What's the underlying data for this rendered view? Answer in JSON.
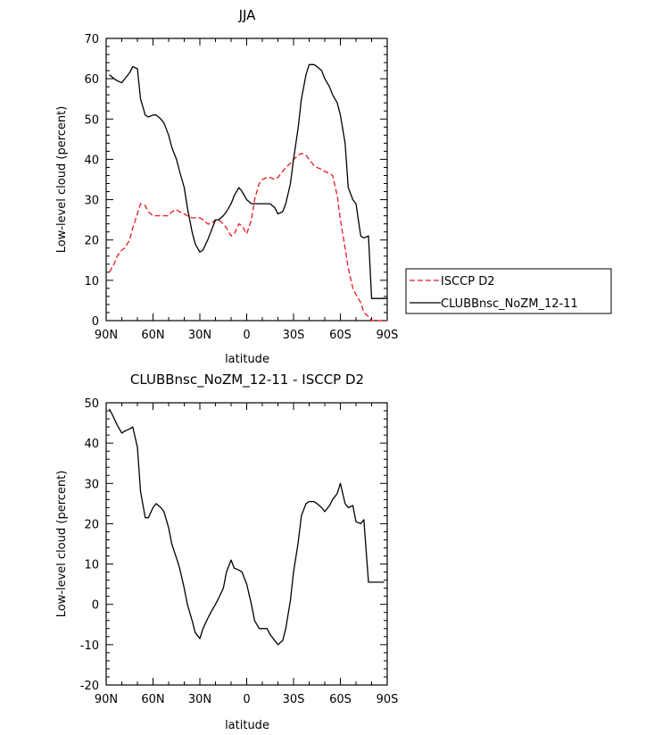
{
  "chart_data": [
    {
      "type": "line",
      "title": "JJA",
      "xlabel": "latitude",
      "ylabel": "Low-level cloud (percent)",
      "xlim": [
        90,
        -90
      ],
      "ylim": [
        0,
        70
      ],
      "x_ticks": [
        90,
        60,
        30,
        0,
        -30,
        -60,
        -90
      ],
      "x_tick_labels": [
        "90N",
        "60N",
        "30N",
        "0",
        "30S",
        "60S",
        "90S"
      ],
      "y_ticks": [
        0,
        10,
        20,
        30,
        40,
        50,
        60,
        70
      ],
      "y_tick_labels": [
        "0",
        "10",
        "20",
        "30",
        "40",
        "50",
        "60",
        "70"
      ],
      "legend_position": "outside-right",
      "series": [
        {
          "name": "ISCCP D2",
          "color": "#e8191f",
          "style": "dashed",
          "x": [
            88,
            85,
            83,
            80,
            78,
            75,
            73,
            70,
            68,
            65,
            63,
            60,
            58,
            55,
            53,
            50,
            48,
            45,
            43,
            40,
            38,
            35,
            33,
            30,
            28,
            25,
            23,
            20,
            18,
            15,
            13,
            10,
            8,
            5,
            3,
            0,
            -3,
            -5,
            -8,
            -10,
            -13,
            -15,
            -18,
            -20,
            -23,
            -25,
            -28,
            -30,
            -33,
            -35,
            -38,
            -40,
            -43,
            -45,
            -48,
            -50,
            -53,
            -55,
            -58,
            -60,
            -63,
            -65,
            -68,
            -70,
            -73,
            -75,
            -78,
            -80,
            -83,
            -85,
            -88,
            -90
          ],
          "values": [
            12,
            14,
            16,
            17.5,
            18,
            20,
            23,
            26.5,
            29,
            28.5,
            27,
            26,
            26,
            26,
            26,
            26,
            27,
            27.5,
            27,
            26.5,
            26,
            25.5,
            25.5,
            25.5,
            25,
            24,
            24,
            25,
            25,
            24,
            23,
            21,
            21.5,
            24,
            23.5,
            21.5,
            25,
            30,
            34,
            35,
            35.5,
            35.5,
            35,
            35.5,
            37,
            38,
            39,
            40,
            41,
            41.5,
            41,
            40,
            38.5,
            38,
            37.5,
            37,
            36.5,
            36,
            31,
            25,
            18,
            13,
            8,
            6.5,
            4.5,
            2,
            1,
            0,
            0,
            0,
            0,
            0
          ]
        },
        {
          "name": "CLUBBnsc_NoZM_12-11",
          "color": "#000000",
          "style": "solid",
          "x": [
            88,
            85,
            83,
            80,
            78,
            75,
            73,
            70,
            68,
            65,
            63,
            60,
            58,
            55,
            53,
            50,
            48,
            45,
            43,
            40,
            38,
            35,
            33,
            30,
            28,
            25,
            23,
            20,
            18,
            15,
            13,
            10,
            8,
            5,
            3,
            0,
            -3,
            -5,
            -8,
            -10,
            -13,
            -15,
            -18,
            -20,
            -23,
            -25,
            -28,
            -30,
            -33,
            -35,
            -38,
            -40,
            -43,
            -45,
            -48,
            -50,
            -53,
            -55,
            -58,
            -60,
            -63,
            -65,
            -68,
            -70,
            -73,
            -75,
            -78,
            -80,
            -83,
            -85,
            -88,
            -90
          ],
          "values": [
            61,
            60,
            59.5,
            59,
            60,
            61.5,
            63,
            62.5,
            55,
            51,
            50.5,
            51,
            51,
            50,
            49,
            46,
            43,
            40,
            37,
            33,
            28,
            22,
            19,
            17,
            17.5,
            20,
            22,
            25,
            25,
            26,
            27,
            29,
            31,
            33,
            32,
            30,
            29,
            29,
            29,
            29,
            29,
            29,
            28,
            26.5,
            27,
            29,
            34,
            40,
            48,
            55,
            61,
            63.5,
            63.5,
            63,
            62,
            60,
            58,
            56,
            54,
            51,
            44,
            33,
            30,
            29,
            21,
            20.5,
            21,
            5.5,
            5.5,
            5.5,
            5.5,
            5.5
          ]
        }
      ]
    },
    {
      "type": "line",
      "title": "CLUBBnsc_NoZM_12-11 - ISCCP D2",
      "xlabel": "latitude",
      "ylabel": "Low-level cloud (percent)",
      "xlim": [
        90,
        -90
      ],
      "ylim": [
        -20,
        50
      ],
      "x_ticks": [
        90,
        60,
        30,
        0,
        -30,
        -60,
        -90
      ],
      "x_tick_labels": [
        "90N",
        "60N",
        "30N",
        "0",
        "30S",
        "60S",
        "90S"
      ],
      "y_ticks": [
        -20,
        -10,
        0,
        10,
        20,
        30,
        40,
        50
      ],
      "y_tick_labels": [
        "-20",
        "-10",
        "0",
        "10",
        "20",
        "30",
        "40",
        "50"
      ],
      "series": [
        {
          "color": "#000000",
          "style": "solid",
          "x": [
            88,
            86,
            83,
            80,
            78,
            75,
            73,
            70,
            68,
            65,
            63,
            60,
            58,
            55,
            53,
            50,
            48,
            45,
            43,
            40,
            38,
            35,
            33,
            30,
            28,
            25,
            23,
            20,
            18,
            15,
            13,
            10,
            8,
            5,
            3,
            0,
            -3,
            -5,
            -8,
            -10,
            -13,
            -15,
            -18,
            -20,
            -23,
            -25,
            -28,
            -30,
            -33,
            -35,
            -38,
            -40,
            -43,
            -45,
            -48,
            -50,
            -53,
            -55,
            -58,
            -60,
            -63,
            -65,
            -68,
            -70,
            -73,
            -75,
            -78,
            -80,
            -83,
            -85,
            -88
          ],
          "values": [
            48.5,
            47,
            44.5,
            42.5,
            43,
            43.5,
            44,
            39,
            28,
            21.5,
            21.5,
            24,
            25,
            24,
            23,
            19,
            15,
            11.5,
            9,
            4,
            0,
            -4,
            -7,
            -8.5,
            -6,
            -3.5,
            -2,
            0,
            1.5,
            4,
            8,
            11,
            9,
            8.5,
            8,
            5,
            0,
            -4,
            -6,
            -6,
            -6,
            -7.5,
            -9,
            -10,
            -9,
            -6,
            1,
            8,
            15.5,
            22,
            25,
            25.5,
            25.5,
            25,
            24,
            23,
            24.5,
            26,
            27.5,
            30,
            25,
            24,
            24.5,
            20.5,
            20,
            21,
            5.5,
            5.5,
            5.5,
            5.5,
            5.5
          ]
        }
      ]
    }
  ]
}
